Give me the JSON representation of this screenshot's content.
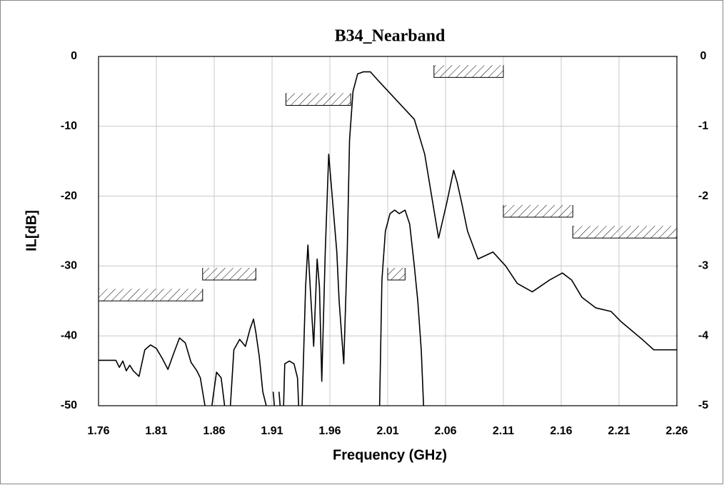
{
  "chart_data": {
    "type": "line",
    "title": "B34_Nearband",
    "x_label": "Frequency (GHz)",
    "y_label": "IL[dB]",
    "xlim": [
      1.76,
      2.26
    ],
    "xticks": [
      1.76,
      1.81,
      1.86,
      1.91,
      1.96,
      2.01,
      2.06,
      2.11,
      2.16,
      2.21,
      2.26
    ],
    "ylim": [
      -50,
      0
    ],
    "yticks": [
      0,
      -10,
      -20,
      -30,
      -40,
      -50
    ],
    "y2lim": [
      -5,
      0
    ],
    "y2ticks": [
      0,
      -1,
      -2,
      -3,
      -4,
      -5
    ],
    "grid": true,
    "series": [
      {
        "color": "#000000",
        "x": [
          1.76,
          1.775,
          1.778,
          1.781,
          1.784,
          1.787,
          1.79,
          1.795,
          1.8,
          1.805,
          1.81,
          1.815,
          1.82,
          1.825,
          1.83,
          1.835,
          1.84,
          1.845,
          1.848,
          1.852,
          1.855,
          1.858,
          1.862,
          1.866,
          1.869,
          1.871,
          1.874,
          1.877,
          1.882,
          1.887,
          1.891,
          1.894,
          1.896,
          1.899,
          1.902,
          1.905,
          1.908,
          1.911,
          1.912,
          1.914,
          1.916,
          1.917,
          1.918,
          1.92,
          1.921,
          1.925,
          1.929,
          1.932,
          1.933,
          1.935,
          1.936,
          1.939,
          1.941,
          1.943,
          1.946,
          1.949,
          1.951,
          1.953,
          1.956,
          1.959,
          1.962,
          1.966,
          1.968,
          1.972,
          1.975,
          1.977,
          1.98,
          1.984,
          1.989,
          1.995,
          2.002,
          2.033,
          2.042,
          2.048,
          2.054,
          2.061,
          2.067,
          2.07,
          2.074,
          2.079,
          2.088,
          2.101,
          2.112,
          2.122,
          2.135,
          2.15,
          2.161,
          2.169,
          2.178,
          2.19,
          2.203,
          2.212,
          2.23,
          2.24,
          2.249,
          2.26
        ],
        "values": [
          -43.5,
          -43.5,
          -44.5,
          -43.6,
          -45,
          -44.2,
          -45,
          -45.8,
          -42,
          -41.3,
          -41.8,
          -43.2,
          -44.8,
          -42.5,
          -40.3,
          -41,
          -43.8,
          -45,
          -46,
          -50,
          null,
          -50,
          -45.2,
          -46,
          -50,
          null,
          -50,
          -42,
          -40.5,
          -41.5,
          -39,
          -37.6,
          -39.5,
          -43,
          -48,
          -50,
          null,
          -48,
          -50,
          null,
          -48,
          -50,
          null,
          -50,
          -44,
          -43.6,
          -44,
          -46,
          -50,
          null,
          -50,
          -33,
          -27,
          -33,
          -41.5,
          -29,
          -33,
          -46.5,
          -28,
          -14,
          -20,
          -28,
          -35,
          -44,
          -28,
          -12,
          -5,
          -2.5,
          -2.2,
          -2.2,
          -3.5,
          -9,
          -14,
          -20,
          -26,
          -21,
          -16.3,
          -18,
          -21,
          -25,
          -29,
          -28,
          -30,
          -32.5,
          -33.7,
          -32,
          -31,
          -32,
          -34.5,
          -36,
          -36.5,
          -38,
          -40.5,
          -42,
          -42,
          -42
        ]
      },
      {
        "color": "#000000",
        "axis": "y2",
        "x": [
          2.003,
          2.005,
          2.008,
          2.012,
          2.016,
          2.02,
          2.025,
          2.029,
          2.033,
          2.036,
          2.039,
          2.041
        ],
        "values": [
          -5,
          -3.2,
          -2.5,
          -2.25,
          -2.2,
          -2.25,
          -2.2,
          -2.4,
          -3,
          -3.5,
          -4.2,
          -5
        ]
      }
    ],
    "masks": [
      {
        "x": [
          1.76,
          1.85
        ],
        "value": -35
      },
      {
        "x": [
          1.85,
          1.896
        ],
        "value": -32
      },
      {
        "x": [
          1.922,
          1.978
        ],
        "value": -7
      },
      {
        "x": [
          2.05,
          2.11
        ],
        "value": -3
      },
      {
        "x": [
          2.11,
          2.17
        ],
        "value": -23
      },
      {
        "x": [
          2.17,
          2.26
        ],
        "value": -26
      },
      {
        "x": [
          2.01,
          2.025
        ],
        "value": -3.2,
        "axis": "y2"
      }
    ]
  }
}
